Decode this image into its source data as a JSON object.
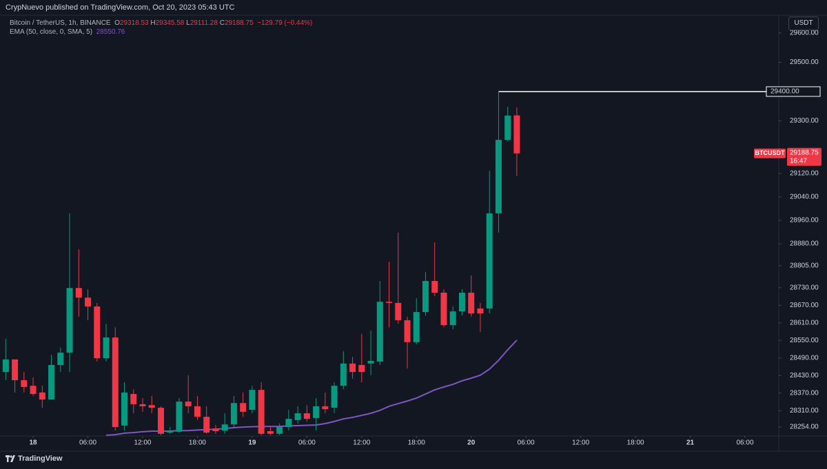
{
  "header": "CrypNuevo published on TradingView.com, Oct 20, 2023 05:43 UTC",
  "footer": "TradingView",
  "chart_data": {
    "type": "candlestick",
    "title": "Bitcoin / TetherUS, 1h, BINANCE",
    "legend_fields": [
      "O",
      "H",
      "L",
      "C"
    ],
    "change": "−129.79 (−0.44%)",
    "currency_button": "USDT",
    "x": [
      -3,
      -2,
      -1,
      0,
      1,
      2,
      3,
      4,
      5,
      6,
      7,
      8,
      9,
      10,
      11,
      12,
      13,
      14,
      15,
      16,
      17,
      18,
      19,
      20,
      21,
      22,
      23,
      24,
      25,
      26,
      27,
      28,
      29,
      30,
      31,
      32,
      33,
      34,
      35,
      36,
      37,
      38,
      39,
      40,
      41,
      42,
      43,
      44,
      45,
      46,
      47,
      48,
      49,
      50,
      51,
      52,
      53
    ],
    "open": [
      28442,
      28485,
      28414,
      28395,
      28372,
      28348,
      28466,
      28508,
      28729,
      28696,
      28666,
      28489,
      28560,
      28259,
      28367,
      28332,
      28329,
      28320,
      28235,
      28238,
      28341,
      28325,
      28289,
      28249,
      28242,
      28263,
      28336,
      28313,
      28381,
      28240,
      28231,
      28254,
      28278,
      28301,
      28285,
      28325,
      28320,
      28395,
      28471,
      28466,
      28471,
      28478,
      28682,
      28678,
      28619,
      28544,
      28647,
      28753,
      28713,
      28602,
      28649,
      28713,
      28659,
      28659,
      28984,
      29235,
      29318.53
    ],
    "high": [
      28555,
      28485,
      28442,
      28424,
      28395,
      28501,
      28525,
      28984,
      28861,
      28725,
      28678,
      28607,
      28595,
      28407,
      28383,
      28353,
      28360,
      28325,
      28254,
      28353,
      28431,
      28360,
      28325,
      28261,
      28301,
      28360,
      28372,
      28395,
      28407,
      28254,
      28266,
      28313,
      28325,
      28329,
      28353,
      28372,
      28407,
      28513,
      28494,
      28572,
      28584,
      28753,
      28819,
      28918,
      28631,
      28694,
      28784,
      28885,
      28725,
      28666,
      28725,
      28772,
      28678,
      29129,
      29400,
      29348,
      29345.58
    ],
    "low": [
      28414,
      28372,
      28372,
      28360,
      28320,
      28348,
      28442,
      28442,
      28631,
      28619,
      28478,
      28478,
      28242,
      28242,
      28301,
      28306,
      28301,
      28226,
      28231,
      28235,
      28301,
      28278,
      28231,
      28231,
      28231,
      28254,
      28289,
      28301,
      28226,
      28226,
      28226,
      28242,
      28266,
      28273,
      28242,
      28301,
      28301,
      28383,
      28419,
      28407,
      28431,
      28466,
      28595,
      28607,
      28454,
      28536,
      28635,
      28701,
      28595,
      28588,
      28635,
      28631,
      28579,
      28642,
      28918,
      29230,
      29111.28
    ],
    "close": [
      28485,
      28414,
      28391,
      28367,
      28348,
      28466,
      28508,
      28729,
      28696,
      28666,
      28489,
      28560,
      28254,
      28372,
      28332,
      28325,
      28320,
      28231,
      28242,
      28341,
      28325,
      28289,
      28235,
      28240,
      28263,
      28336,
      28306,
      28381,
      28231,
      28231,
      28254,
      28282,
      28301,
      28282,
      28325,
      28315,
      28395,
      28471,
      28442,
      28442,
      28480,
      28682,
      28678,
      28619,
      28544,
      28647,
      28753,
      28713,
      28602,
      28649,
      28713,
      28642,
      28642,
      28984,
      29235,
      29318,
      29188.75
    ],
    "up_color": "#089981",
    "down_color": "#f23645",
    "series": [
      {
        "name": "EMA (50, close, 0, SMA, 5)",
        "color": "#7e57c2",
        "values": [
          null,
          null,
          null,
          null,
          null,
          null,
          null,
          null,
          null,
          null,
          null,
          28226,
          28228,
          28233,
          28235,
          28238,
          28240,
          28240,
          28240,
          28242,
          28242,
          28244,
          28245,
          28247,
          28249,
          28252,
          28254,
          28255,
          28256,
          28256,
          28256,
          28258,
          28259,
          28260,
          28261,
          28266,
          28273,
          28282,
          28287,
          28294,
          28301,
          28311,
          28325,
          28334,
          28343,
          28353,
          28367,
          28381,
          28391,
          28400,
          28412,
          28421,
          28431,
          28452,
          28482,
          28518,
          28550.76
        ]
      }
    ],
    "price_tag": {
      "symbol": "BTCUSDT",
      "countdown": "16:47"
    },
    "hline": {
      "value": 29400,
      "label": "29400.00"
    },
    "xlim": [
      -3.63,
      81.7
    ],
    "xticks": [
      {
        "value": 0,
        "label": "18"
      },
      {
        "value": 6,
        "label": "06:00"
      },
      {
        "value": 12,
        "label": "12:00"
      },
      {
        "value": 18,
        "label": "18:00"
      },
      {
        "value": 24,
        "label": "19"
      },
      {
        "value": 30,
        "label": "06:00"
      },
      {
        "value": 36,
        "label": "12:00"
      },
      {
        "value": 42,
        "label": "18:00"
      },
      {
        "value": 48,
        "label": "20"
      },
      {
        "value": 54,
        "label": "06:00"
      },
      {
        "value": 60,
        "label": "12:00"
      },
      {
        "value": 66,
        "label": "18:00"
      },
      {
        "value": 72,
        "label": "21"
      },
      {
        "value": 78,
        "label": "06:00"
      }
    ],
    "ylim": [
      28226,
      29661
    ],
    "yticks": [
      {
        "value": 28254,
        "label": "28254.00"
      },
      {
        "value": 28310,
        "label": "28310.00"
      },
      {
        "value": 28370,
        "label": "28370.00"
      },
      {
        "value": 28430,
        "label": "28430.00"
      },
      {
        "value": 28490,
        "label": "28490.00"
      },
      {
        "value": 28550,
        "label": "28550.00"
      },
      {
        "value": 28610,
        "label": "28610.00"
      },
      {
        "value": 28670,
        "label": "28670.00"
      },
      {
        "value": 28730,
        "label": "28730.00"
      },
      {
        "value": 28805,
        "label": "28805.00"
      },
      {
        "value": 28880,
        "label": "28880.00"
      },
      {
        "value": 28960,
        "label": "28960.00"
      },
      {
        "value": 29040,
        "label": "29040.00"
      },
      {
        "value": 29120,
        "label": "29120.00"
      },
      {
        "value": 29300,
        "label": "29300.00"
      },
      {
        "value": 29500,
        "label": "29500.00"
      },
      {
        "value": 29600,
        "label": "29600.00"
      }
    ],
    "grid": false
  }
}
